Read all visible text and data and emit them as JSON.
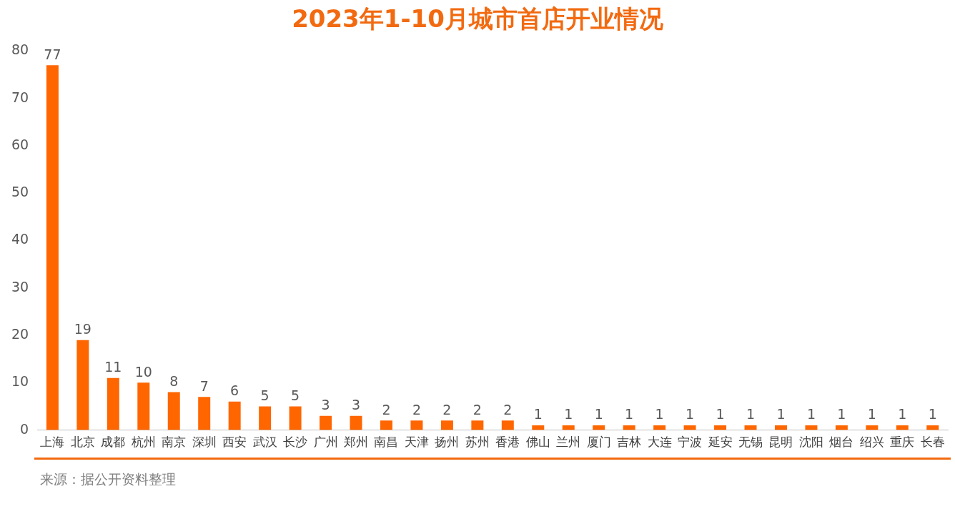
{
  "chart_data": {
    "type": "bar",
    "title": "2023年1-10月城市首店开业情况",
    "categories": [
      "上海",
      "北京",
      "成都",
      "杭州",
      "南京",
      "深圳",
      "西安",
      "武汉",
      "长沙",
      "广州",
      "郑州",
      "南昌",
      "天津",
      "扬州",
      "苏州",
      "香港",
      "佛山",
      "兰州",
      "厦门",
      "吉林",
      "大连",
      "宁波",
      "延安",
      "无锡",
      "昆明",
      "沈阳",
      "烟台",
      "绍兴",
      "重庆",
      "长春"
    ],
    "values": [
      77,
      19,
      11,
      10,
      8,
      7,
      6,
      5,
      5,
      3,
      3,
      2,
      2,
      2,
      2,
      2,
      1,
      1,
      1,
      1,
      1,
      1,
      1,
      1,
      1,
      1,
      1,
      1,
      1,
      1
    ],
    "color": "#ff6600",
    "ylim": [
      0,
      80
    ],
    "yticks": [
      0,
      10,
      20,
      30,
      40,
      50,
      60,
      70,
      80
    ],
    "grid": false,
    "legend": false,
    "data_labels": true,
    "annotations": [
      "来源：据公开资料整理"
    ]
  }
}
